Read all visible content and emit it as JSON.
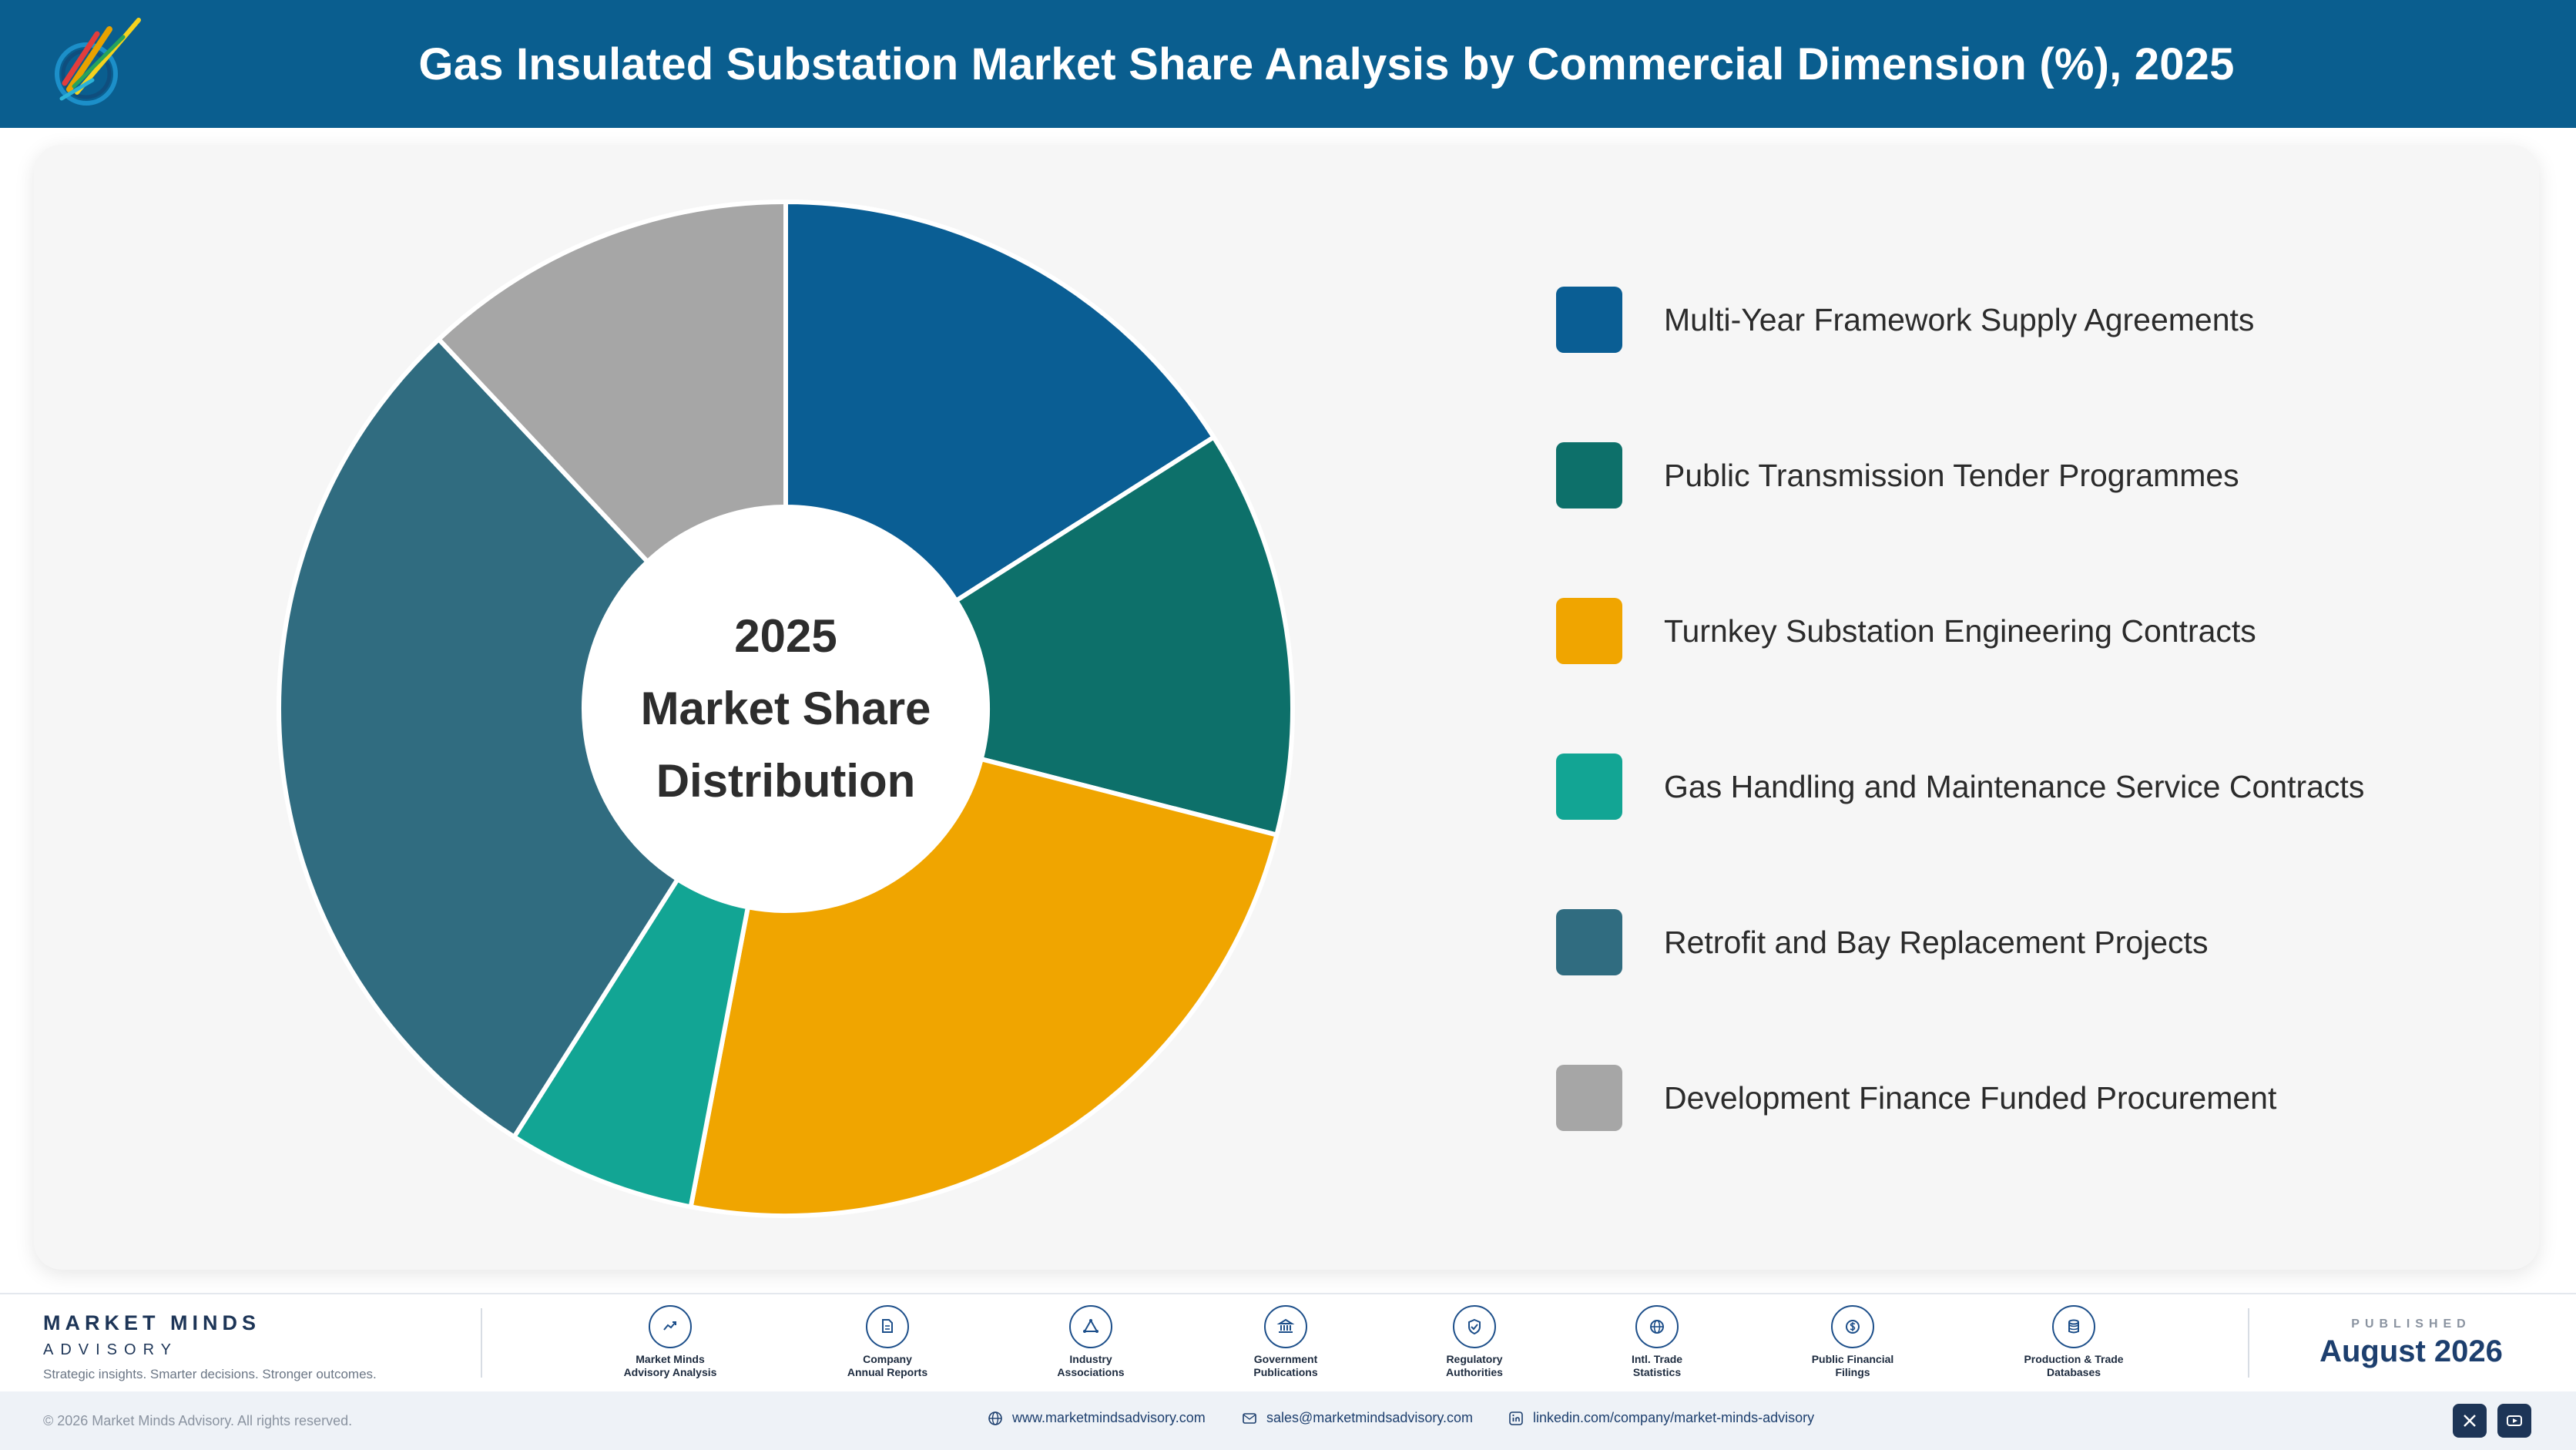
{
  "header": {
    "title": "Gas Insulated Substation Market Share Analysis by Commercial Dimension (%), 2025",
    "logo_caption": "Market Minds Advisory"
  },
  "center_label": {
    "line1": "2025",
    "line2": "Market Share",
    "line3": "Distribution"
  },
  "chart_data": {
    "type": "pie",
    "title": "Gas Insulated Substation Market Share Analysis by Commercial Dimension (%), 2025",
    "categories": [
      "Multi-Year Framework Supply Agreements",
      "Public Transmission Tender Programmes",
      "Turnkey Substation Engineering Contracts",
      "Gas Handling and Maintenance Service Contracts",
      "Retrofit and Bay Replacement Projects",
      "Development Finance Funded Procurement"
    ],
    "values": [
      16,
      13,
      24,
      6,
      29,
      12
    ],
    "colors": [
      "#0a5e94",
      "#0d706a",
      "#f0a500",
      "#12a594",
      "#306c80",
      "#a6a6a6"
    ],
    "donut": true,
    "legend_position": "right"
  },
  "footer": {
    "brand_name": "MARKET MINDS",
    "brand_sub": "ADVISORY",
    "brand_tagline": "Strategic insights. Smarter decisions. Stronger outcomes.",
    "sources": [
      {
        "line1": "Market Minds",
        "line2": "Advisory Analysis",
        "icon": "trend-chart-icon"
      },
      {
        "line1": "Company",
        "line2": "Annual Reports",
        "icon": "document-icon"
      },
      {
        "line1": "Industry",
        "line2": "Associations",
        "icon": "network-icon"
      },
      {
        "line1": "Government",
        "line2": "Publications",
        "icon": "government-building-icon"
      },
      {
        "line1": "Regulatory",
        "line2": "Authorities",
        "icon": "shield-check-icon"
      },
      {
        "line1": "Intl. Trade",
        "line2": "Statistics",
        "icon": "globe-icon"
      },
      {
        "line1": "Public Financial",
        "line2": "Filings",
        "icon": "dollar-coin-icon"
      },
      {
        "line1": "Production & Trade",
        "line2": "Databases",
        "icon": "database-icon"
      }
    ],
    "published_label": "PUBLISHED",
    "published_date": "August 2026"
  },
  "bottom": {
    "copyright": "© 2026 Market Minds Advisory. All rights reserved.",
    "website": "www.marketmindsadvisory.com",
    "email": "sales@marketmindsadvisory.com",
    "linkedin": "linkedin.com/company/market-minds-advisory"
  }
}
